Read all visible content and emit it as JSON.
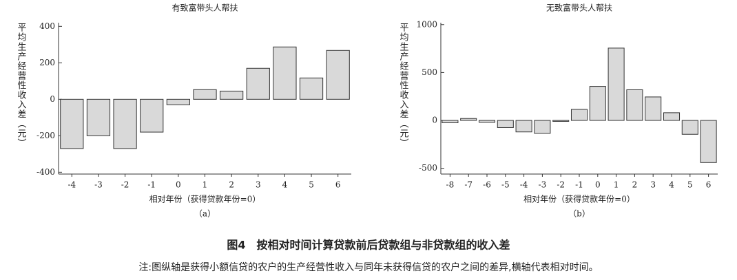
{
  "chart_data": [
    {
      "type": "bar",
      "title": "有致富带头人帮扶",
      "y_label": "平均生产经营性收入差（元）",
      "x_label": "相对年份（获得贷款年份=0）",
      "sublabel": "（a）",
      "categories": [
        "-4",
        "-3",
        "-2",
        "-1",
        "0",
        "1",
        "2",
        "3",
        "4",
        "5",
        "6"
      ],
      "values": [
        -270,
        -200,
        -270,
        -180,
        -30,
        53,
        45,
        170,
        287,
        117,
        268
      ],
      "color": "#d9d9d9",
      "ylim": [
        -410,
        420
      ],
      "yticks": [
        -400,
        -200,
        0,
        200,
        400
      ]
    },
    {
      "type": "bar",
      "title": "无致富带头人帮扶",
      "y_label": "平均生产经营性收入差（元）",
      "x_label": "相对年份（获得贷款年份=0）",
      "sublabel": "（b）",
      "categories": [
        "-8",
        "-7",
        "-6",
        "-5",
        "-4",
        "-3",
        "-2",
        "-1",
        "0",
        "1",
        "2",
        "3",
        "4",
        "5",
        "6"
      ],
      "values": [
        -25,
        20,
        -20,
        -75,
        -120,
        -135,
        -10,
        115,
        355,
        755,
        320,
        245,
        80,
        -145,
        -440
      ],
      "color": "#d9d9d9",
      "ylim": [
        -560,
        1020
      ],
      "yticks": [
        -500,
        0,
        500,
        1000
      ]
    }
  ],
  "caption": "图4　按相对时间计算贷款前后贷款组与非贷款组的收入差",
  "note": "注:图纵轴是获得小额信贷的农户的生产经营性收入与同年未获得信贷的农户之间的差异,横轴代表相对时间。"
}
